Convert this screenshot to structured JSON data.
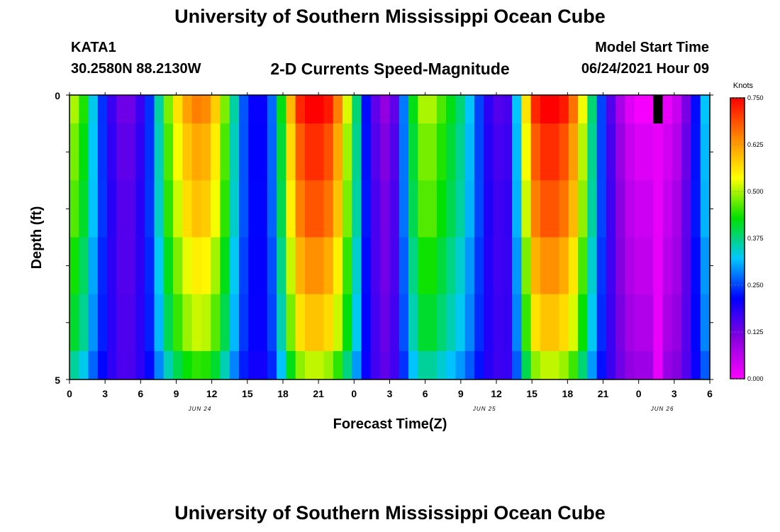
{
  "header": {
    "title": "University of Southern Mississippi Ocean Cube",
    "station_id": "KATA1",
    "coordinates": "30.2580N  88.2130W",
    "plot_title": "2-D Currents Speed-Magnitude",
    "model_start_label": "Model Start Time",
    "model_start_value": "06/24/2021 Hour 09"
  },
  "footer": {
    "title": "University of Southern Mississippi Ocean Cube"
  },
  "colors": {
    "colormap": [
      "#ff00ff",
      "#8a00e0",
      "#0000ff",
      "#00c8ff",
      "#00e000",
      "#ffff00",
      "#ff8800",
      "#ff0000"
    ],
    "missing": "#000000"
  },
  "chart_data": {
    "type": "heatmap",
    "title": "2-D Currents Speed-Magnitude",
    "xlabel": "Forecast Time(Z)",
    "ylabel": "Depth (ft)",
    "x_tick_labels": [
      "0",
      "3",
      "6",
      "9",
      "12",
      "15",
      "18",
      "21",
      "0",
      "3",
      "6",
      "9",
      "12",
      "15",
      "18",
      "21",
      "0",
      "3",
      "6"
    ],
    "date_labels": [
      {
        "label": "JUN 24",
        "hour": 11
      },
      {
        "label": "JUN 25",
        "hour": 35
      },
      {
        "label": "JUN 26",
        "hour": 50
      }
    ],
    "y_tick_labels": [
      "0",
      "5"
    ],
    "ylim": [
      0,
      5
    ],
    "xlim_hours": [
      0,
      54
    ],
    "colorbar": {
      "unit": "Knots",
      "ticks": [
        "0.000",
        "0.125",
        "0.250",
        "0.375",
        "0.500",
        "0.625",
        "0.750"
      ],
      "min": 0,
      "max": 0.75
    },
    "depth_layer_bounds_ft": [
      0,
      0.5,
      1.5,
      2.5,
      3.5,
      4.5,
      5.0
    ],
    "missing_value": -1,
    "surface_profile_knots": [
      0.5,
      0.44,
      0.33,
      0.24,
      0.17,
      0.13,
      0.13,
      0.17,
      0.24,
      0.36,
      0.48,
      0.56,
      0.62,
      0.65,
      0.64,
      0.58,
      0.48,
      0.36,
      0.26,
      0.21,
      0.21,
      0.27,
      0.42,
      0.6,
      0.72,
      0.76,
      0.76,
      0.73,
      0.65,
      0.52,
      0.38,
      0.22,
      0.14,
      0.1,
      0.14,
      0.28,
      0.42,
      0.5,
      0.5,
      0.46,
      0.42,
      0.38,
      0.32,
      0.25,
      0.18,
      0.15,
      0.16,
      0.32,
      0.56,
      0.72,
      0.76,
      0.76,
      0.73,
      0.66,
      0.53,
      0.38,
      0.25,
      0.15,
      0.08,
      0.03,
      0.01,
      0.01,
      -1,
      0.02,
      0.05,
      0.12,
      0.22,
      0.32
    ],
    "layer_factors": [
      {
        "layer": 1,
        "a": 1.0,
        "b": 0.0,
        "c": 0.0
      },
      {
        "layer": 2,
        "a": 0.97,
        "b": 0.06,
        "c": 0.0
      },
      {
        "layer": 3,
        "a": 0.95,
        "b": 0.1,
        "c": 0.0
      },
      {
        "layer": 4,
        "a": 0.9,
        "b": 0.13,
        "c": 0.0
      },
      {
        "layer": 5,
        "a": 0.86,
        "b": 0.17,
        "c": 0.0
      },
      {
        "layer": 6,
        "a": 0.78,
        "b": 0.22,
        "c": 0.0
      }
    ]
  }
}
